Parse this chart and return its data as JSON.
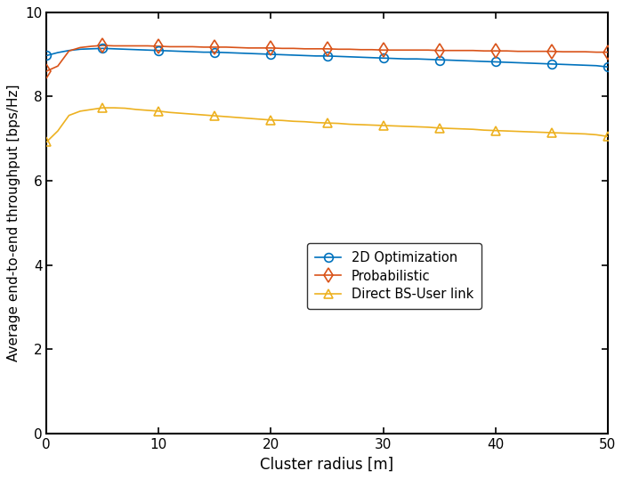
{
  "x": [
    0,
    1,
    2,
    3,
    4,
    5,
    6,
    7,
    8,
    9,
    10,
    11,
    12,
    13,
    14,
    15,
    16,
    17,
    18,
    19,
    20,
    21,
    22,
    23,
    24,
    25,
    26,
    27,
    28,
    29,
    30,
    31,
    32,
    33,
    34,
    35,
    36,
    37,
    38,
    39,
    40,
    41,
    42,
    43,
    44,
    45,
    46,
    47,
    48,
    49,
    50
  ],
  "x_ticks": [
    0,
    10,
    20,
    30,
    40,
    50
  ],
  "y_2d": [
    8.97,
    9.04,
    9.09,
    9.12,
    9.13,
    9.14,
    9.13,
    9.12,
    9.11,
    9.1,
    9.09,
    9.08,
    9.07,
    9.06,
    9.05,
    9.05,
    9.04,
    9.03,
    9.02,
    9.01,
    9.0,
    8.99,
    8.98,
    8.97,
    8.96,
    8.96,
    8.95,
    8.94,
    8.93,
    8.92,
    8.91,
    8.9,
    8.89,
    8.89,
    8.88,
    8.87,
    8.86,
    8.85,
    8.84,
    8.83,
    8.82,
    8.81,
    8.8,
    8.79,
    8.78,
    8.77,
    8.76,
    8.75,
    8.74,
    8.73,
    8.7
  ],
  "y_prob": [
    8.6,
    8.72,
    9.08,
    9.16,
    9.19,
    9.21,
    9.2,
    9.2,
    9.2,
    9.2,
    9.19,
    9.18,
    9.18,
    9.18,
    9.17,
    9.17,
    9.17,
    9.16,
    9.15,
    9.15,
    9.15,
    9.14,
    9.14,
    9.13,
    9.13,
    9.13,
    9.12,
    9.12,
    9.11,
    9.11,
    9.1,
    9.1,
    9.1,
    9.1,
    9.1,
    9.09,
    9.09,
    9.09,
    9.09,
    9.08,
    9.08,
    9.08,
    9.07,
    9.07,
    9.07,
    9.07,
    9.06,
    9.06,
    9.06,
    9.05,
    9.05
  ],
  "y_direct": [
    6.92,
    7.18,
    7.55,
    7.65,
    7.69,
    7.73,
    7.73,
    7.72,
    7.69,
    7.67,
    7.65,
    7.62,
    7.6,
    7.58,
    7.56,
    7.54,
    7.52,
    7.5,
    7.48,
    7.46,
    7.44,
    7.43,
    7.41,
    7.4,
    7.38,
    7.37,
    7.36,
    7.34,
    7.33,
    7.32,
    7.31,
    7.3,
    7.29,
    7.28,
    7.27,
    7.25,
    7.24,
    7.23,
    7.22,
    7.2,
    7.19,
    7.18,
    7.17,
    7.16,
    7.15,
    7.14,
    7.13,
    7.12,
    7.11,
    7.09,
    7.05
  ],
  "marker_x": [
    0,
    5,
    10,
    15,
    20,
    25,
    30,
    35,
    40,
    45,
    50
  ],
  "marker_y_2d": [
    8.97,
    9.14,
    9.09,
    9.05,
    9.0,
    8.96,
    8.91,
    8.86,
    8.82,
    8.77,
    8.7
  ],
  "marker_y_prob": [
    8.6,
    9.21,
    9.19,
    9.17,
    9.15,
    9.13,
    9.1,
    9.09,
    9.08,
    9.07,
    9.05
  ],
  "marker_y_direct": [
    6.92,
    7.73,
    7.65,
    7.54,
    7.44,
    7.37,
    7.31,
    7.24,
    7.19,
    7.14,
    7.05
  ],
  "color_2d": "#0072BD",
  "color_prob": "#D95319",
  "color_direct": "#EDB120",
  "xlabel": "Cluster radius [m]",
  "ylabel": "Average end-to-end throughput [bps/Hz]",
  "ylim": [
    0,
    10
  ],
  "xlim": [
    0,
    50
  ],
  "yticks": [
    0,
    2,
    4,
    6,
    8,
    10
  ],
  "label_2d": "2D Optimization",
  "label_prob": "Probabilistic",
  "label_direct": "Direct BS-User link",
  "figsize": [
    7.0,
    5.38
  ],
  "dpi": 100,
  "bg_color": "#ffffff"
}
